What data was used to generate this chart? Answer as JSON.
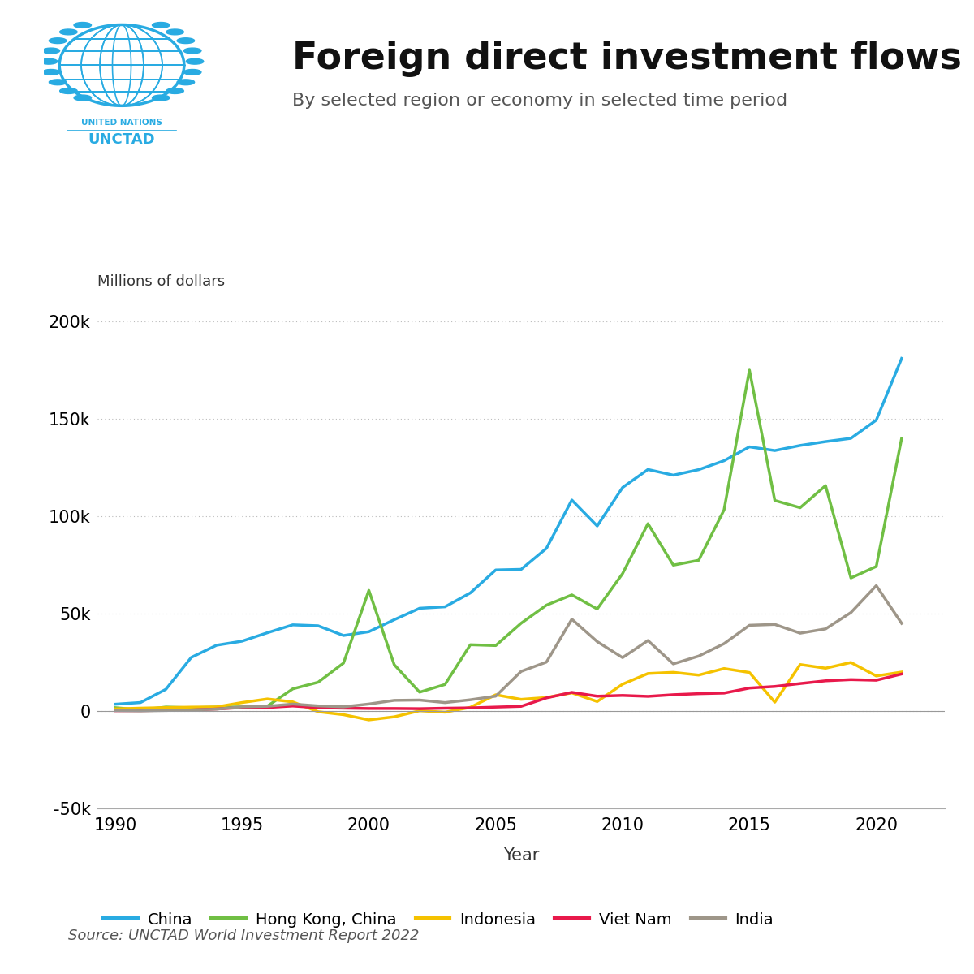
{
  "title": "Foreign direct investment flows",
  "subtitle": "By selected region or economy in selected time period",
  "ylabel": "Millions of dollars",
  "xlabel": "Year",
  "source": "Source: UNCTAD World Investment Report 2022",
  "years": [
    1990,
    1991,
    1992,
    1993,
    1994,
    1995,
    1996,
    1997,
    1998,
    1999,
    2000,
    2001,
    2002,
    2003,
    2004,
    2005,
    2006,
    2007,
    2008,
    2009,
    2010,
    2011,
    2012,
    2013,
    2014,
    2015,
    2016,
    2017,
    2018,
    2019,
    2020,
    2021
  ],
  "china": [
    3487,
    4366,
    11156,
    27515,
    33787,
    35849,
    40180,
    44237,
    43751,
    38753,
    40715,
    46878,
    52743,
    53505,
    60630,
    72406,
    72715,
    83521,
    108312,
    95000,
    114734,
    123985,
    121080,
    123911,
    128500,
    135610,
    133700,
    136320,
    138300,
    140000,
    149342,
    181000
  ],
  "hong_kong": [
    1728,
    538,
    2051,
    1667,
    2000,
    2100,
    2500,
    11368,
    14776,
    24596,
    61924,
    23777,
    9682,
    13624,
    34035,
    33618,
    45054,
    54352,
    59622,
    52394,
    70541,
    96173,
    74887,
    77380,
    103254,
    175000,
    108088,
    104370,
    115711,
    68322,
    74210,
    140000
  ],
  "indonesia": [
    1093,
    1482,
    1777,
    2004,
    2109,
    4346,
    6194,
    4677,
    -356,
    -1866,
    -4550,
    -2977,
    145,
    -597,
    1896,
    8336,
    5977,
    6928,
    9318,
    4877,
    13771,
    19242,
    19853,
    18444,
    21803,
    19779,
    4541,
    23858,
    21975,
    24922,
    18000,
    20000
  ],
  "viet_nam": [
    180,
    220,
    385,
    522,
    1048,
    1780,
    1803,
    2587,
    1700,
    1484,
    1298,
    1300,
    1200,
    1450,
    1610,
    2021,
    2400,
    6739,
    9579,
    7600,
    8000,
    7519,
    8368,
    8900,
    9200,
    11800,
    12600,
    14100,
    15500,
    16120,
    15800,
    19000
  ],
  "india": [
    237,
    75,
    277,
    550,
    974,
    2151,
    2426,
    3577,
    2633,
    2168,
    3588,
    5472,
    5627,
    4323,
    5771,
    7622,
    20328,
    25127,
    47139,
    35634,
    27417,
    36190,
    24196,
    28199,
    34582,
    44009,
    44459,
    39966,
    42156,
    50553,
    64362,
    45000
  ],
  "china_color": "#29ABE2",
  "hong_kong_color": "#70BF44",
  "indonesia_color": "#F5C200",
  "viet_nam_color": "#E8194B",
  "india_color": "#9E9689",
  "ylim": [
    -50000,
    210000
  ],
  "yticks": [
    -50000,
    0,
    50000,
    100000,
    150000,
    200000
  ],
  "xticks": [
    1990,
    1995,
    2000,
    2005,
    2010,
    2015,
    2020
  ],
  "grid_color": "#BBBBBB",
  "background_color": "#FFFFFF",
  "line_width": 2.5
}
